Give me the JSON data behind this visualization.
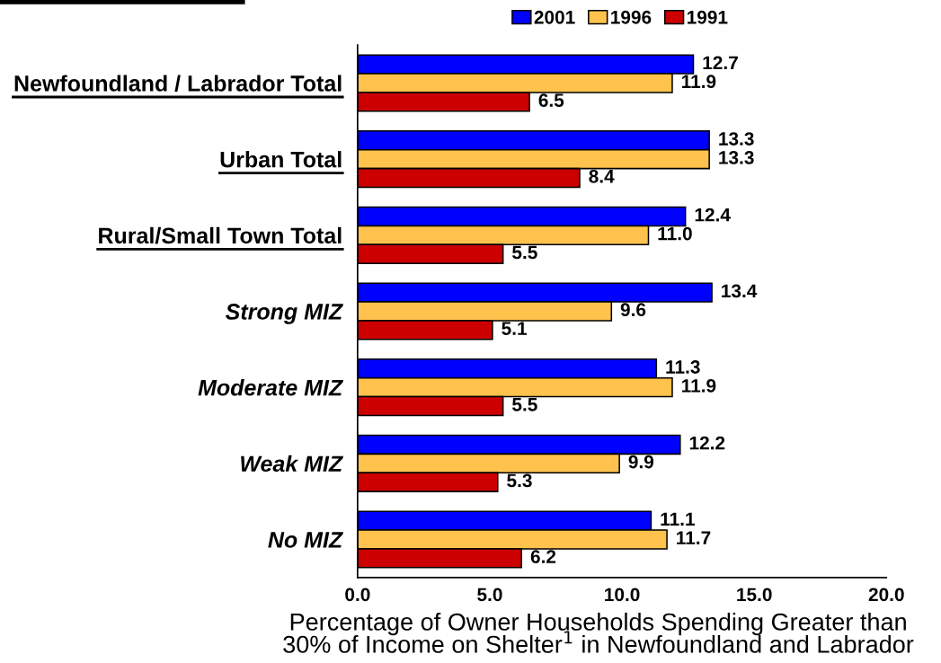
{
  "chart_data": {
    "type": "bar",
    "orientation": "horizontal",
    "categories": [
      "Newfoundland / Labrador Total",
      "Urban Total",
      "Rural/Small Town Total",
      "Strong MIZ",
      "Moderate MIZ",
      "Weak MIZ",
      "No MIZ"
    ],
    "series": [
      {
        "name": "2001",
        "color": "#0000ff",
        "values": [
          12.7,
          13.3,
          12.4,
          13.4,
          11.3,
          12.2,
          11.1
        ],
        "value_labels": [
          "12.7",
          "13.3",
          "12.4",
          "13.4",
          "11.3",
          "12.2",
          "11.1"
        ]
      },
      {
        "name": "1996",
        "color": "#ffc34d",
        "values": [
          11.9,
          13.3,
          11.0,
          9.6,
          11.9,
          9.9,
          11.7
        ],
        "value_labels": [
          "11.9",
          "13.3",
          "11.0",
          "9.6",
          "11.9",
          "9.9",
          "11.7"
        ]
      },
      {
        "name": "1991",
        "color": "#cc0000",
        "values": [
          6.5,
          8.4,
          5.5,
          5.1,
          5.5,
          5.3,
          6.2
        ],
        "value_labels": [
          "6.5",
          "8.4",
          "5.5",
          "5.1",
          "5.5",
          "5.3",
          "6.2"
        ]
      }
    ],
    "xlim": [
      0,
      20
    ],
    "xticks": [
      {
        "value": 0,
        "label": "0.0"
      },
      {
        "value": 5,
        "label": "5.0"
      },
      {
        "value": 10,
        "label": "10.0"
      },
      {
        "value": 15,
        "label": "15.0"
      },
      {
        "value": 20,
        "label": "20.0"
      }
    ],
    "xlabel": "Percentage of Owner Households Spending Greater than\n30% of Income on Shelter$^{1}$ in Newfoundland and Labrador",
    "legend": "top",
    "grid": false
  }
}
